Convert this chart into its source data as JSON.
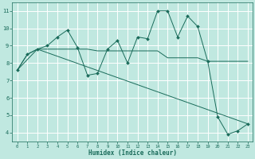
{
  "title": "",
  "xlabel": "Humidex (Indice chaleur)",
  "bg_color": "#c0e8e0",
  "line_color": "#1a6b5a",
  "grid_color": "#ffffff",
  "xlim": [
    -0.5,
    23.5
  ],
  "ylim": [
    3.5,
    11.5
  ],
  "xticks": [
    0,
    1,
    2,
    3,
    4,
    5,
    6,
    7,
    8,
    9,
    10,
    11,
    12,
    13,
    14,
    15,
    16,
    17,
    18,
    19,
    20,
    21,
    22,
    23
  ],
  "yticks": [
    4,
    5,
    6,
    7,
    8,
    9,
    10,
    11
  ],
  "series1_x": [
    0,
    1,
    2,
    3,
    4,
    5,
    6,
    7,
    8,
    9,
    10,
    11,
    12,
    13,
    14,
    15,
    16,
    17,
    18,
    19,
    20,
    21,
    22,
    23
  ],
  "series1_y": [
    7.6,
    8.5,
    8.8,
    9.0,
    9.5,
    9.9,
    8.9,
    7.3,
    7.4,
    8.8,
    9.3,
    8.0,
    9.5,
    9.4,
    11.0,
    11.0,
    9.5,
    10.7,
    10.1,
    8.1,
    4.9,
    3.9,
    4.1,
    4.5
  ],
  "series2_x": [
    0,
    1,
    2,
    3,
    4,
    5,
    6,
    7,
    8,
    9,
    10,
    11,
    12,
    13,
    14,
    15,
    16,
    17,
    18,
    19,
    20,
    21,
    22,
    23
  ],
  "series2_y": [
    7.6,
    8.5,
    8.8,
    8.8,
    8.8,
    8.8,
    8.8,
    8.8,
    8.7,
    8.7,
    8.7,
    8.7,
    8.7,
    8.7,
    8.7,
    8.3,
    8.3,
    8.3,
    8.3,
    8.1,
    8.1,
    8.1,
    8.1,
    8.1
  ],
  "series3_x": [
    0,
    2,
    23
  ],
  "series3_y": [
    7.6,
    8.8,
    4.5
  ]
}
